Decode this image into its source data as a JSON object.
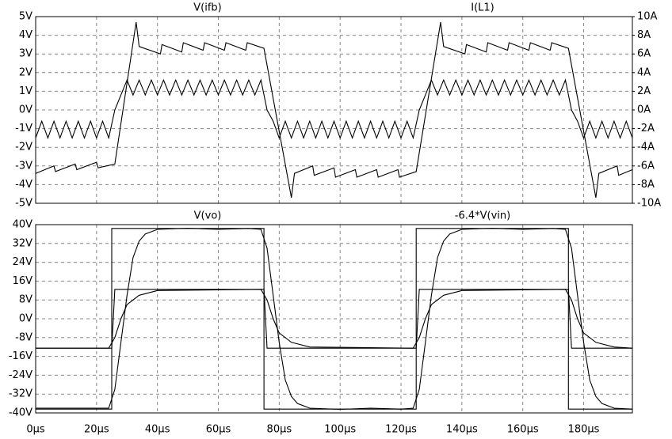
{
  "chart_data": [
    {
      "type": "line",
      "xlim": [
        0,
        196
      ],
      "xticks": [
        0,
        20,
        40,
        60,
        80,
        100,
        120,
        140,
        160,
        180
      ],
      "ylim": [
        -5,
        5
      ],
      "yticks": [
        {
          "value": -5,
          "label": "-5V"
        },
        {
          "value": -4,
          "label": "-4V"
        },
        {
          "value": -3,
          "label": "-3V"
        },
        {
          "value": -2,
          "label": "-2V"
        },
        {
          "value": -1,
          "label": "-1V"
        },
        {
          "value": 0,
          "label": "0V"
        },
        {
          "value": 1,
          "label": "1V"
        },
        {
          "value": 2,
          "label": "2V"
        },
        {
          "value": 3,
          "label": "3V"
        },
        {
          "value": 4,
          "label": "4V"
        },
        {
          "value": 5,
          "label": "5V"
        }
      ],
      "y2lim": [
        -10,
        10
      ],
      "y2ticks": [
        {
          "value": -10,
          "label": "-10A"
        },
        {
          "value": -8,
          "label": "-8A"
        },
        {
          "value": -6,
          "label": "-6A"
        },
        {
          "value": -4,
          "label": "-4A"
        },
        {
          "value": -2,
          "label": "-2A"
        },
        {
          "value": 0,
          "label": "0A"
        },
        {
          "value": 2,
          "label": "2A"
        },
        {
          "value": 4,
          "label": "4A"
        },
        {
          "value": 6,
          "label": "6A"
        },
        {
          "value": 8,
          "label": "8A"
        },
        {
          "value": 10,
          "label": "10A"
        }
      ],
      "grid": true,
      "series": [
        {
          "name": "V(ifb)",
          "color": "#000000",
          "x": [
            0,
            2,
            4,
            6,
            8,
            10,
            12,
            14,
            16,
            18,
            20,
            22,
            24,
            26,
            28,
            30,
            32,
            34,
            36,
            38,
            40,
            42,
            44,
            46,
            48,
            50,
            52,
            54,
            56,
            58,
            60,
            62,
            64,
            66,
            68,
            70,
            72,
            74,
            76,
            78,
            80,
            82,
            84,
            86,
            88,
            90,
            92,
            94,
            96,
            98,
            100,
            102,
            104,
            106,
            108,
            110,
            112,
            114,
            116,
            118,
            120,
            122,
            124,
            126,
            128,
            130,
            132,
            134,
            136,
            138,
            140,
            142,
            144,
            146,
            148,
            150,
            152,
            154,
            156,
            158,
            160,
            162,
            164,
            166,
            168,
            170,
            172,
            174,
            176,
            178,
            180,
            182,
            184,
            186,
            188,
            190,
            192,
            194,
            196
          ],
          "values": [
            -1.5,
            -0.6,
            -1.5,
            -0.6,
            -1.5,
            -0.6,
            -1.5,
            -0.6,
            -1.5,
            -0.6,
            -1.5,
            -0.6,
            -1.5,
            0,
            0.8,
            1.6,
            0.8,
            1.6,
            0.8,
            1.6,
            0.8,
            1.6,
            0.8,
            1.6,
            0.8,
            1.6,
            0.8,
            1.6,
            0.8,
            1.6,
            0.8,
            1.6,
            0.8,
            1.6,
            0.8,
            1.6,
            0.8,
            1.6,
            0,
            -0.6,
            -1.5,
            -0.6,
            -1.5,
            -0.6,
            -1.5,
            -0.6,
            -1.5,
            -0.6,
            -1.5,
            -0.6,
            -1.5,
            -0.6,
            -1.5,
            -0.6,
            -1.5,
            -0.6,
            -1.5,
            -0.6,
            -1.5,
            -0.6,
            -1.5,
            -0.6,
            -1.5,
            0,
            0.8,
            1.6,
            0.8,
            1.6,
            0.8,
            1.6,
            0.8,
            1.6,
            0.8,
            1.6,
            0.8,
            1.6,
            0.8,
            1.6,
            0.8,
            1.6,
            0.8,
            1.6,
            0.8,
            1.6,
            0.8,
            1.6,
            0.8,
            1.6,
            0,
            -0.6,
            -1.5,
            -0.6,
            -1.5,
            -0.6,
            -1.5,
            -0.6,
            -1.5,
            -0.6,
            -1.5
          ]
        },
        {
          "name": "I(L1)",
          "color": "#000000",
          "axis": "y2",
          "x": [
            0,
            6,
            6.5,
            13,
            13.5,
            20,
            20.5,
            26,
            33,
            34,
            41,
            41.5,
            48,
            48.5,
            55,
            55.5,
            62,
            62.5,
            69,
            69.5,
            75,
            84,
            85,
            91,
            91.5,
            98,
            98.5,
            105,
            105.5,
            112,
            112.5,
            119,
            119.5,
            125,
            133,
            134,
            141,
            141.5,
            148,
            148.5,
            155,
            155.5,
            162,
            162.5,
            169,
            169.5,
            175,
            184,
            185,
            191,
            191.5,
            196
          ],
          "values": [
            -6.8,
            -6.0,
            -6.6,
            -5.8,
            -6.4,
            -5.6,
            -6.2,
            -5.8,
            9.4,
            6.8,
            6.0,
            7.0,
            6.2,
            7.2,
            6.4,
            7.2,
            6.4,
            7.2,
            6.4,
            7.2,
            6.6,
            -9.4,
            -6.8,
            -6.0,
            -7.0,
            -6.2,
            -7.2,
            -6.4,
            -7.2,
            -6.4,
            -7.2,
            -6.4,
            -7.2,
            -6.6,
            9.4,
            6.8,
            6.0,
            7.0,
            6.2,
            7.2,
            6.4,
            7.2,
            6.4,
            7.2,
            6.4,
            7.2,
            6.6,
            -9.4,
            -6.8,
            -6.0,
            -7.0,
            -6.4
          ]
        }
      ]
    },
    {
      "type": "line",
      "xlim": [
        0,
        196
      ],
      "xticks": [
        {
          "value": 0,
          "label": "0µs"
        },
        {
          "value": 20,
          "label": "20µs"
        },
        {
          "value": 40,
          "label": "40µs"
        },
        {
          "value": 60,
          "label": "60µs"
        },
        {
          "value": 80,
          "label": "80µs"
        },
        {
          "value": 100,
          "label": "100µs"
        },
        {
          "value": 120,
          "label": "120µs"
        },
        {
          "value": 140,
          "label": "140µs"
        },
        {
          "value": 160,
          "label": "160µs"
        },
        {
          "value": 180,
          "label": "180µs"
        }
      ],
      "ylim": [
        -40,
        40
      ],
      "yticks": [
        {
          "value": -40,
          "label": "-40V"
        },
        {
          "value": -32,
          "label": "-32V"
        },
        {
          "value": -24,
          "label": "-24V"
        },
        {
          "value": -16,
          "label": "-16V"
        },
        {
          "value": -8,
          "label": "-8V"
        },
        {
          "value": 0,
          "label": "0V"
        },
        {
          "value": 8,
          "label": "8V"
        },
        {
          "value": 16,
          "label": "16V"
        },
        {
          "value": 24,
          "label": "24V"
        },
        {
          "value": 32,
          "label": "32V"
        },
        {
          "value": 40,
          "label": "40V"
        }
      ],
      "grid": true,
      "series": [
        {
          "name": "V(vo)",
          "color": "#000000",
          "x": [
            0,
            24,
            26,
            28,
            30,
            32,
            34,
            36,
            40,
            50,
            60,
            70,
            74,
            76,
            78,
            80,
            82,
            84,
            86,
            90,
            100,
            110,
            120,
            124,
            126,
            128,
            130,
            132,
            134,
            136,
            140,
            150,
            160,
            170,
            174,
            176,
            178,
            180,
            182,
            184,
            186,
            190,
            196
          ],
          "values": [
            -38,
            -38,
            -30,
            -10,
            10,
            26,
            33,
            36,
            38,
            38.5,
            38,
            38.4,
            38,
            30,
            10,
            -10,
            -26,
            -33,
            -36,
            -38,
            -38.5,
            -38,
            -38.4,
            -38,
            -30,
            -10,
            10,
            26,
            33,
            36,
            38,
            38.5,
            38,
            38.4,
            38,
            30,
            10,
            -10,
            -26,
            -33,
            -36,
            -38,
            -38.4
          ]
        },
        {
          "name": "-6.4*V(vin)",
          "color": "#000000",
          "x": [
            0,
            25,
            25,
            75,
            75,
            125,
            125,
            175,
            175,
            196
          ],
          "values": [
            -38.4,
            -38.4,
            38.4,
            38.4,
            -38.4,
            -38.4,
            38.4,
            38.4,
            -38.4,
            -38.4
          ]
        },
        {
          "color": "#000000",
          "x": [
            0,
            25,
            26,
            75,
            76,
            125,
            126,
            175,
            176,
            196
          ],
          "values": [
            -12.5,
            -12.5,
            12.5,
            12.5,
            -12.5,
            -12.5,
            12.5,
            12.5,
            -12.5,
            -12.5
          ]
        },
        {
          "color": "#000000",
          "x": [
            0,
            24,
            26,
            28,
            30,
            34,
            40,
            74,
            76,
            78,
            80,
            84,
            90,
            124,
            126,
            128,
            130,
            134,
            140,
            174,
            176,
            178,
            180,
            184,
            190,
            196
          ],
          "values": [
            -12.5,
            -12.5,
            -8,
            0,
            6,
            10,
            12,
            12.5,
            8,
            0,
            -6,
            -10,
            -12,
            -12.5,
            -8,
            0,
            6,
            10,
            12,
            12.5,
            8,
            0,
            -6,
            -10,
            -12,
            -12.5
          ]
        }
      ]
    }
  ]
}
